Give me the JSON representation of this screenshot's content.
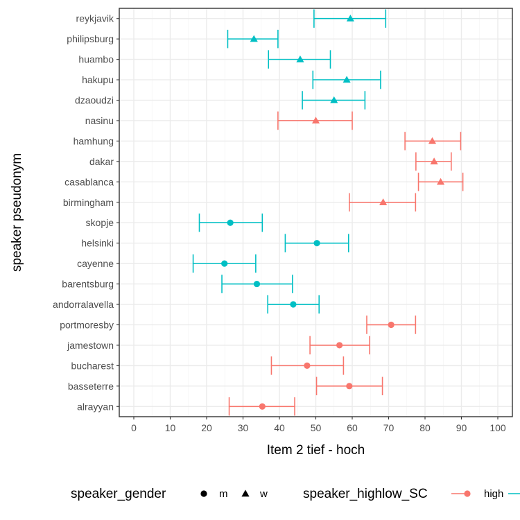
{
  "chart_data": {
    "type": "errorbar",
    "xlabel": "Item 2 tief - hoch",
    "ylabel": "speaker pseudonym",
    "xlim": [
      -4,
      104
    ],
    "x_ticks": [
      0,
      10,
      20,
      30,
      40,
      50,
      60,
      70,
      80,
      90,
      100
    ],
    "grid": true,
    "legend_position": "bottom",
    "colors": {
      "high": "#F8766D",
      "low": "#00BFC4"
    },
    "legend": {
      "shape_title": "speaker_gender",
      "shape_items": [
        {
          "label": "m",
          "shape": "circle"
        },
        {
          "label": "w",
          "shape": "triangle"
        }
      ],
      "color_title": "speaker_highlow_SC",
      "color_items": [
        {
          "label": "high",
          "key": "high"
        },
        {
          "label": "",
          "key": "low"
        }
      ]
    },
    "categories": [
      "reykjavik",
      "philipsburg",
      "huambo",
      "hakupu",
      "dzaoudzi",
      "nasinu",
      "hamhung",
      "dakar",
      "casablanca",
      "birmingham",
      "skopje",
      "helsinki",
      "cayenne",
      "barentsburg",
      "andorralavella",
      "portmoresby",
      "jamestown",
      "bucharest",
      "basseterre",
      "alrayyan"
    ],
    "points": [
      {
        "speaker": "reykjavik",
        "mean": 59.5,
        "low": 49.5,
        "high": 69.2,
        "gender": "w",
        "group": "low"
      },
      {
        "speaker": "philipsburg",
        "mean": 33.0,
        "low": 25.8,
        "high": 39.6,
        "gender": "w",
        "group": "low"
      },
      {
        "speaker": "huambo",
        "mean": 45.7,
        "low": 37.0,
        "high": 54.0,
        "gender": "w",
        "group": "low"
      },
      {
        "speaker": "hakupu",
        "mean": 58.5,
        "low": 49.2,
        "high": 67.8,
        "gender": "w",
        "group": "low"
      },
      {
        "speaker": "dzaoudzi",
        "mean": 55.0,
        "low": 46.3,
        "high": 63.5,
        "gender": "w",
        "group": "low"
      },
      {
        "speaker": "nasinu",
        "mean": 50.0,
        "low": 39.6,
        "high": 60.0,
        "gender": "w",
        "group": "high"
      },
      {
        "speaker": "hamhung",
        "mean": 82.0,
        "low": 74.5,
        "high": 89.8,
        "gender": "w",
        "group": "high"
      },
      {
        "speaker": "dakar",
        "mean": 82.5,
        "low": 77.5,
        "high": 87.2,
        "gender": "w",
        "group": "high"
      },
      {
        "speaker": "casablanca",
        "mean": 84.3,
        "low": 78.2,
        "high": 90.4,
        "gender": "w",
        "group": "high"
      },
      {
        "speaker": "birmingham",
        "mean": 68.5,
        "low": 59.2,
        "high": 77.4,
        "gender": "w",
        "group": "high"
      },
      {
        "speaker": "skopje",
        "mean": 26.5,
        "low": 18.0,
        "high": 35.3,
        "gender": "m",
        "group": "low"
      },
      {
        "speaker": "helsinki",
        "mean": 50.3,
        "low": 41.6,
        "high": 59.0,
        "gender": "m",
        "group": "low"
      },
      {
        "speaker": "cayenne",
        "mean": 24.9,
        "low": 16.3,
        "high": 33.5,
        "gender": "m",
        "group": "low"
      },
      {
        "speaker": "barentsburg",
        "mean": 33.8,
        "low": 24.2,
        "high": 43.6,
        "gender": "m",
        "group": "low"
      },
      {
        "speaker": "andorralavella",
        "mean": 43.8,
        "low": 36.8,
        "high": 50.9,
        "gender": "m",
        "group": "low"
      },
      {
        "speaker": "portmoresby",
        "mean": 70.7,
        "low": 64.0,
        "high": 77.4,
        "gender": "m",
        "group": "high"
      },
      {
        "speaker": "jamestown",
        "mean": 56.5,
        "low": 48.4,
        "high": 64.8,
        "gender": "m",
        "group": "high"
      },
      {
        "speaker": "bucharest",
        "mean": 47.6,
        "low": 37.8,
        "high": 57.6,
        "gender": "m",
        "group": "high"
      },
      {
        "speaker": "basseterre",
        "mean": 59.2,
        "low": 50.2,
        "high": 68.3,
        "gender": "m",
        "group": "high"
      },
      {
        "speaker": "alrayyan",
        "mean": 35.3,
        "low": 26.2,
        "high": 44.2,
        "gender": "m",
        "group": "high"
      }
    ]
  }
}
